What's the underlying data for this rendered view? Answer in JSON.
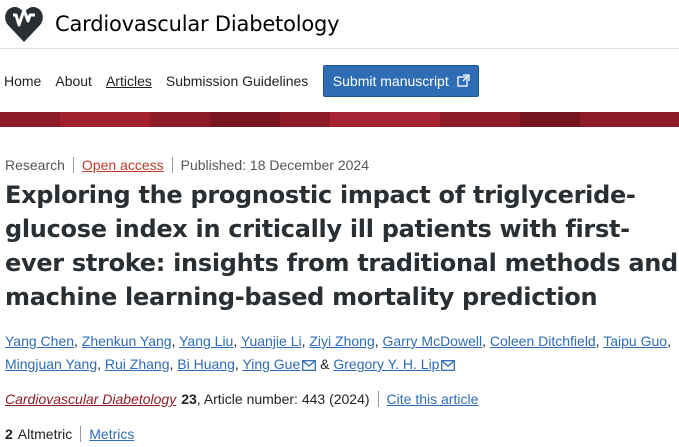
{
  "header": {
    "journal_title": "Cardiovascular Diabetology",
    "logo_icon": "heart-pulse-icon",
    "brand_color": "#8e1b28"
  },
  "nav": {
    "items": [
      {
        "label": "Home"
      },
      {
        "label": "About"
      },
      {
        "label": "Articles"
      },
      {
        "label": "Submission Guidelines"
      }
    ],
    "submit_label": "Submit manuscript",
    "submit_icon": "external-link-icon",
    "button_color": "#2e6cb4"
  },
  "article": {
    "type": "Research",
    "access": "Open access",
    "published": "Published: 18 December 2024",
    "title": "Exploring the prognostic impact of triglyceride-glucose index in critically ill patients with first-ever stroke: insights from traditional methods and machine learning-based mortality prediction",
    "authors": [
      {
        "name": "Yang Chen"
      },
      {
        "name": "Zhenkun Yang"
      },
      {
        "name": "Yang Liu"
      },
      {
        "name": "Yuanjie Li"
      },
      {
        "name": "Ziyi Zhong"
      },
      {
        "name": "Garry McDowell"
      },
      {
        "name": "Coleen Ditchfield"
      },
      {
        "name": "Taipu Guo"
      },
      {
        "name": "Mingjuan Yang"
      },
      {
        "name": "Rui Zhang"
      },
      {
        "name": "Bi Huang"
      },
      {
        "name": "Ying Gue"
      },
      {
        "name": "Gregory Y. H. Lip"
      }
    ],
    "author_and": "&",
    "mail_icon": "envelope-icon"
  },
  "citation": {
    "journal": "Cardiovascular Diabetology",
    "volume": "23",
    "details": ", Article number: 443 (2024)",
    "cite_label": "Cite this article"
  },
  "metrics": {
    "altmetric_count": "2",
    "altmetric_label": "Altmetric",
    "metrics_label": "Metrics"
  }
}
